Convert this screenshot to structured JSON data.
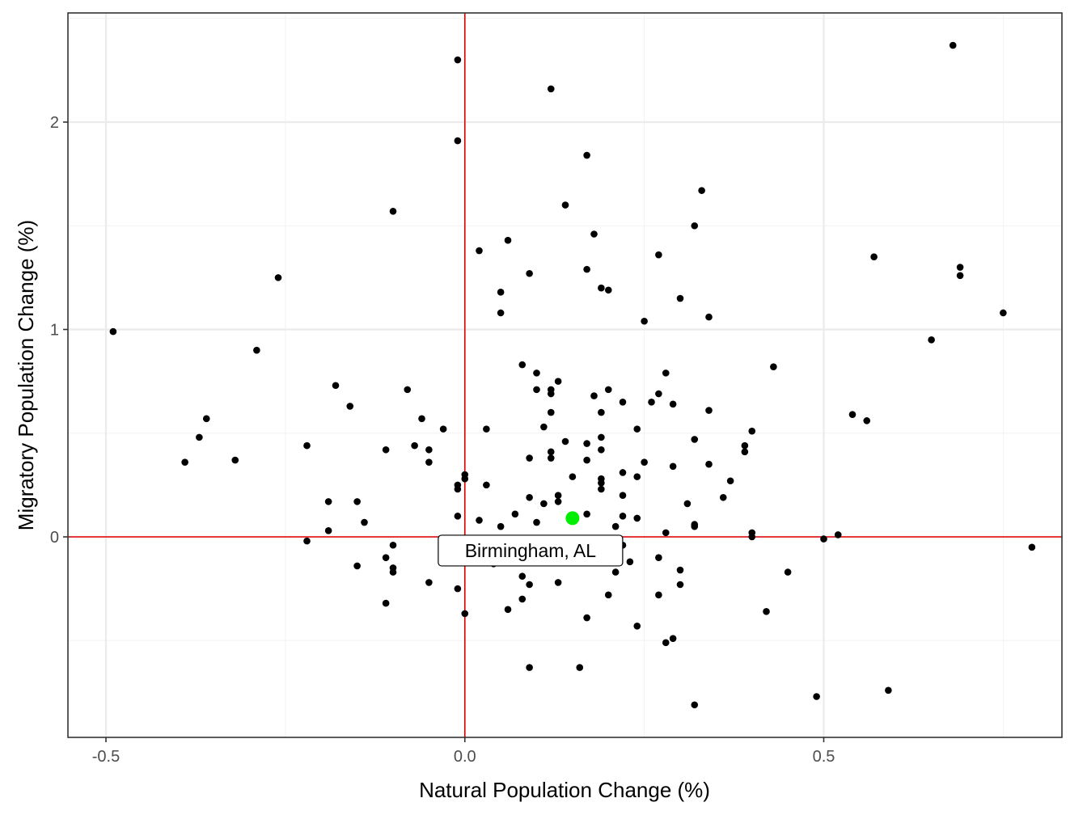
{
  "chart_data": {
    "type": "scatter",
    "xlabel": "Natural Population Change (%)",
    "ylabel": "Migratory Population Change (%)",
    "xlim": [
      -0.5,
      0.8
    ],
    "ylim": [
      -0.97,
      2.52
    ],
    "x_ticks": [
      {
        "value": -0.5,
        "label": "-0.5"
      },
      {
        "value": 0.0,
        "label": "0.0"
      },
      {
        "value": 0.5,
        "label": "0.5"
      }
    ],
    "y_ticks": [
      {
        "value": 0,
        "label": "0"
      },
      {
        "value": 1,
        "label": "1"
      },
      {
        "value": 2,
        "label": "2"
      }
    ],
    "grid": true,
    "reference_lines": {
      "x": 0,
      "y": 0,
      "color": "#e00000"
    },
    "point_color": "#000000",
    "highlight": {
      "label": "Birmingham, AL",
      "x": 0.15,
      "y": 0.09,
      "color": "#00ee00"
    },
    "points": [
      {
        "x": -0.49,
        "y": 0.99
      },
      {
        "x": -0.39,
        "y": 0.36
      },
      {
        "x": -0.37,
        "y": 0.48
      },
      {
        "x": -0.36,
        "y": 0.57
      },
      {
        "x": -0.32,
        "y": 0.37
      },
      {
        "x": -0.29,
        "y": 0.9
      },
      {
        "x": -0.26,
        "y": 1.25
      },
      {
        "x": -0.22,
        "y": 0.44
      },
      {
        "x": -0.22,
        "y": -0.02
      },
      {
        "x": -0.19,
        "y": 0.17
      },
      {
        "x": -0.19,
        "y": 0.03
      },
      {
        "x": -0.18,
        "y": 0.73
      },
      {
        "x": -0.16,
        "y": 0.63
      },
      {
        "x": -0.15,
        "y": 0.17
      },
      {
        "x": -0.15,
        "y": -0.14
      },
      {
        "x": -0.14,
        "y": 0.07
      },
      {
        "x": -0.11,
        "y": 0.42
      },
      {
        "x": -0.11,
        "y": -0.1
      },
      {
        "x": -0.11,
        "y": -0.32
      },
      {
        "x": -0.1,
        "y": 1.57
      },
      {
        "x": -0.1,
        "y": -0.04
      },
      {
        "x": -0.1,
        "y": -0.15
      },
      {
        "x": -0.1,
        "y": -0.17
      },
      {
        "x": -0.08,
        "y": 0.71
      },
      {
        "x": -0.07,
        "y": 0.44
      },
      {
        "x": -0.06,
        "y": 0.57
      },
      {
        "x": -0.05,
        "y": 0.42
      },
      {
        "x": -0.05,
        "y": 0.36
      },
      {
        "x": -0.05,
        "y": -0.22
      },
      {
        "x": -0.03,
        "y": 0.52
      },
      {
        "x": -0.01,
        "y": 2.3
      },
      {
        "x": -0.01,
        "y": 1.91
      },
      {
        "x": -0.01,
        "y": 0.25
      },
      {
        "x": -0.01,
        "y": 0.23
      },
      {
        "x": -0.01,
        "y": 0.1
      },
      {
        "x": -0.01,
        "y": -0.25
      },
      {
        "x": 0.0,
        "y": 0.3
      },
      {
        "x": 0.0,
        "y": 0.28
      },
      {
        "x": 0.0,
        "y": -0.37
      },
      {
        "x": 0.02,
        "y": 1.38
      },
      {
        "x": 0.02,
        "y": 0.08
      },
      {
        "x": 0.03,
        "y": 0.52
      },
      {
        "x": 0.03,
        "y": 0.25
      },
      {
        "x": 0.04,
        "y": -0.13
      },
      {
        "x": 0.05,
        "y": 1.18
      },
      {
        "x": 0.05,
        "y": 1.08
      },
      {
        "x": 0.05,
        "y": 0.05
      },
      {
        "x": 0.06,
        "y": 1.43
      },
      {
        "x": 0.06,
        "y": -0.35
      },
      {
        "x": 0.07,
        "y": 0.11
      },
      {
        "x": 0.08,
        "y": 0.83
      },
      {
        "x": 0.08,
        "y": -0.19
      },
      {
        "x": 0.08,
        "y": -0.3
      },
      {
        "x": 0.09,
        "y": 1.27
      },
      {
        "x": 0.09,
        "y": 0.38
      },
      {
        "x": 0.09,
        "y": 0.19
      },
      {
        "x": 0.09,
        "y": -0.23
      },
      {
        "x": 0.09,
        "y": -0.63
      },
      {
        "x": 0.1,
        "y": 0.79
      },
      {
        "x": 0.1,
        "y": 0.71
      },
      {
        "x": 0.1,
        "y": 0.07
      },
      {
        "x": 0.11,
        "y": 0.53
      },
      {
        "x": 0.11,
        "y": 0.16
      },
      {
        "x": 0.12,
        "y": 2.16
      },
      {
        "x": 0.12,
        "y": 0.71
      },
      {
        "x": 0.12,
        "y": 0.69
      },
      {
        "x": 0.12,
        "y": 0.6
      },
      {
        "x": 0.12,
        "y": 0.41
      },
      {
        "x": 0.12,
        "y": 0.38
      },
      {
        "x": 0.13,
        "y": 0.75
      },
      {
        "x": 0.13,
        "y": 0.2
      },
      {
        "x": 0.13,
        "y": 0.17
      },
      {
        "x": 0.13,
        "y": -0.22
      },
      {
        "x": 0.14,
        "y": 1.6
      },
      {
        "x": 0.14,
        "y": 0.46
      },
      {
        "x": 0.15,
        "y": 0.29
      },
      {
        "x": 0.16,
        "y": -0.63
      },
      {
        "x": 0.17,
        "y": 1.84
      },
      {
        "x": 0.17,
        "y": 1.29
      },
      {
        "x": 0.17,
        "y": 0.45
      },
      {
        "x": 0.17,
        "y": 0.37
      },
      {
        "x": 0.17,
        "y": 0.11
      },
      {
        "x": 0.17,
        "y": -0.39
      },
      {
        "x": 0.18,
        "y": 1.46
      },
      {
        "x": 0.18,
        "y": 0.68
      },
      {
        "x": 0.19,
        "y": 1.2
      },
      {
        "x": 0.19,
        "y": 0.6
      },
      {
        "x": 0.19,
        "y": 0.48
      },
      {
        "x": 0.19,
        "y": 0.42
      },
      {
        "x": 0.19,
        "y": 0.28
      },
      {
        "x": 0.19,
        "y": 0.26
      },
      {
        "x": 0.19,
        "y": 0.23
      },
      {
        "x": 0.2,
        "y": 1.19
      },
      {
        "x": 0.2,
        "y": 0.71
      },
      {
        "x": 0.2,
        "y": -0.28
      },
      {
        "x": 0.21,
        "y": 0.05
      },
      {
        "x": 0.21,
        "y": -0.17
      },
      {
        "x": 0.22,
        "y": 0.65
      },
      {
        "x": 0.22,
        "y": 0.31
      },
      {
        "x": 0.22,
        "y": 0.2
      },
      {
        "x": 0.22,
        "y": 0.1
      },
      {
        "x": 0.22,
        "y": -0.04
      },
      {
        "x": 0.23,
        "y": -0.12
      },
      {
        "x": 0.24,
        "y": 0.52
      },
      {
        "x": 0.24,
        "y": 0.29
      },
      {
        "x": 0.24,
        "y": 0.09
      },
      {
        "x": 0.24,
        "y": -0.43
      },
      {
        "x": 0.25,
        "y": 1.04
      },
      {
        "x": 0.25,
        "y": 0.36
      },
      {
        "x": 0.26,
        "y": 0.65
      },
      {
        "x": 0.27,
        "y": 1.36
      },
      {
        "x": 0.27,
        "y": 0.69
      },
      {
        "x": 0.27,
        "y": -0.1
      },
      {
        "x": 0.27,
        "y": -0.28
      },
      {
        "x": 0.28,
        "y": 0.79
      },
      {
        "x": 0.28,
        "y": 0.02
      },
      {
        "x": 0.28,
        "y": -0.51
      },
      {
        "x": 0.29,
        "y": 0.64
      },
      {
        "x": 0.29,
        "y": 0.34
      },
      {
        "x": 0.29,
        "y": -0.49
      },
      {
        "x": 0.3,
        "y": 1.15
      },
      {
        "x": 0.3,
        "y": -0.16
      },
      {
        "x": 0.3,
        "y": -0.23
      },
      {
        "x": 0.31,
        "y": 0.16
      },
      {
        "x": 0.32,
        "y": 1.5
      },
      {
        "x": 0.32,
        "y": 0.47
      },
      {
        "x": 0.32,
        "y": 0.06
      },
      {
        "x": 0.32,
        "y": 0.05
      },
      {
        "x": 0.32,
        "y": -0.81
      },
      {
        "x": 0.33,
        "y": 1.67
      },
      {
        "x": 0.34,
        "y": 1.06
      },
      {
        "x": 0.34,
        "y": 0.61
      },
      {
        "x": 0.34,
        "y": 0.35
      },
      {
        "x": 0.36,
        "y": 0.19
      },
      {
        "x": 0.37,
        "y": 0.27
      },
      {
        "x": 0.39,
        "y": 0.44
      },
      {
        "x": 0.39,
        "y": 0.41
      },
      {
        "x": 0.4,
        "y": 0.51
      },
      {
        "x": 0.4,
        "y": 0.02
      },
      {
        "x": 0.4,
        "y": 0.0
      },
      {
        "x": 0.42,
        "y": -0.36
      },
      {
        "x": 0.43,
        "y": 0.82
      },
      {
        "x": 0.45,
        "y": -0.17
      },
      {
        "x": 0.49,
        "y": -0.77
      },
      {
        "x": 0.5,
        "y": -0.01
      },
      {
        "x": 0.52,
        "y": 0.01
      },
      {
        "x": 0.54,
        "y": 0.59
      },
      {
        "x": 0.56,
        "y": 0.56
      },
      {
        "x": 0.57,
        "y": 1.35
      },
      {
        "x": 0.59,
        "y": -0.74
      },
      {
        "x": 0.65,
        "y": 0.95
      },
      {
        "x": 0.68,
        "y": 2.37
      },
      {
        "x": 0.69,
        "y": 1.3
      },
      {
        "x": 0.69,
        "y": 1.26
      },
      {
        "x": 0.75,
        "y": 1.08
      },
      {
        "x": 0.79,
        "y": -0.05
      }
    ]
  }
}
